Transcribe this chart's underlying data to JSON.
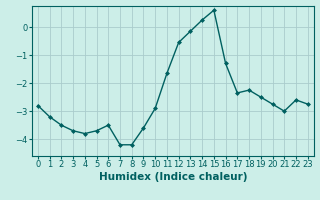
{
  "x": [
    0,
    1,
    2,
    3,
    4,
    5,
    6,
    7,
    8,
    9,
    10,
    11,
    12,
    13,
    14,
    15,
    16,
    17,
    18,
    19,
    20,
    21,
    22,
    23
  ],
  "y": [
    -2.8,
    -3.2,
    -3.5,
    -3.7,
    -3.8,
    -3.7,
    -3.5,
    -4.2,
    -4.2,
    -3.6,
    -2.9,
    -1.65,
    -0.55,
    -0.15,
    0.25,
    0.6,
    -1.3,
    -2.35,
    -2.25,
    -2.5,
    -2.75,
    -3.0,
    -2.6,
    -2.75
  ],
  "line_color": "#006060",
  "marker": "D",
  "marker_size": 2.0,
  "bg_color": "#cceee8",
  "grid_color": "#aacccc",
  "xlabel": "Humidex (Indice chaleur)",
  "xlabel_fontsize": 7.5,
  "tick_label_color": "#006060",
  "tick_fontsize": 6.0,
  "ylim": [
    -4.6,
    0.75
  ],
  "yticks": [
    0,
    -1,
    -2,
    -3,
    -4
  ],
  "xlim": [
    -0.5,
    23.5
  ],
  "linewidth": 1.0
}
